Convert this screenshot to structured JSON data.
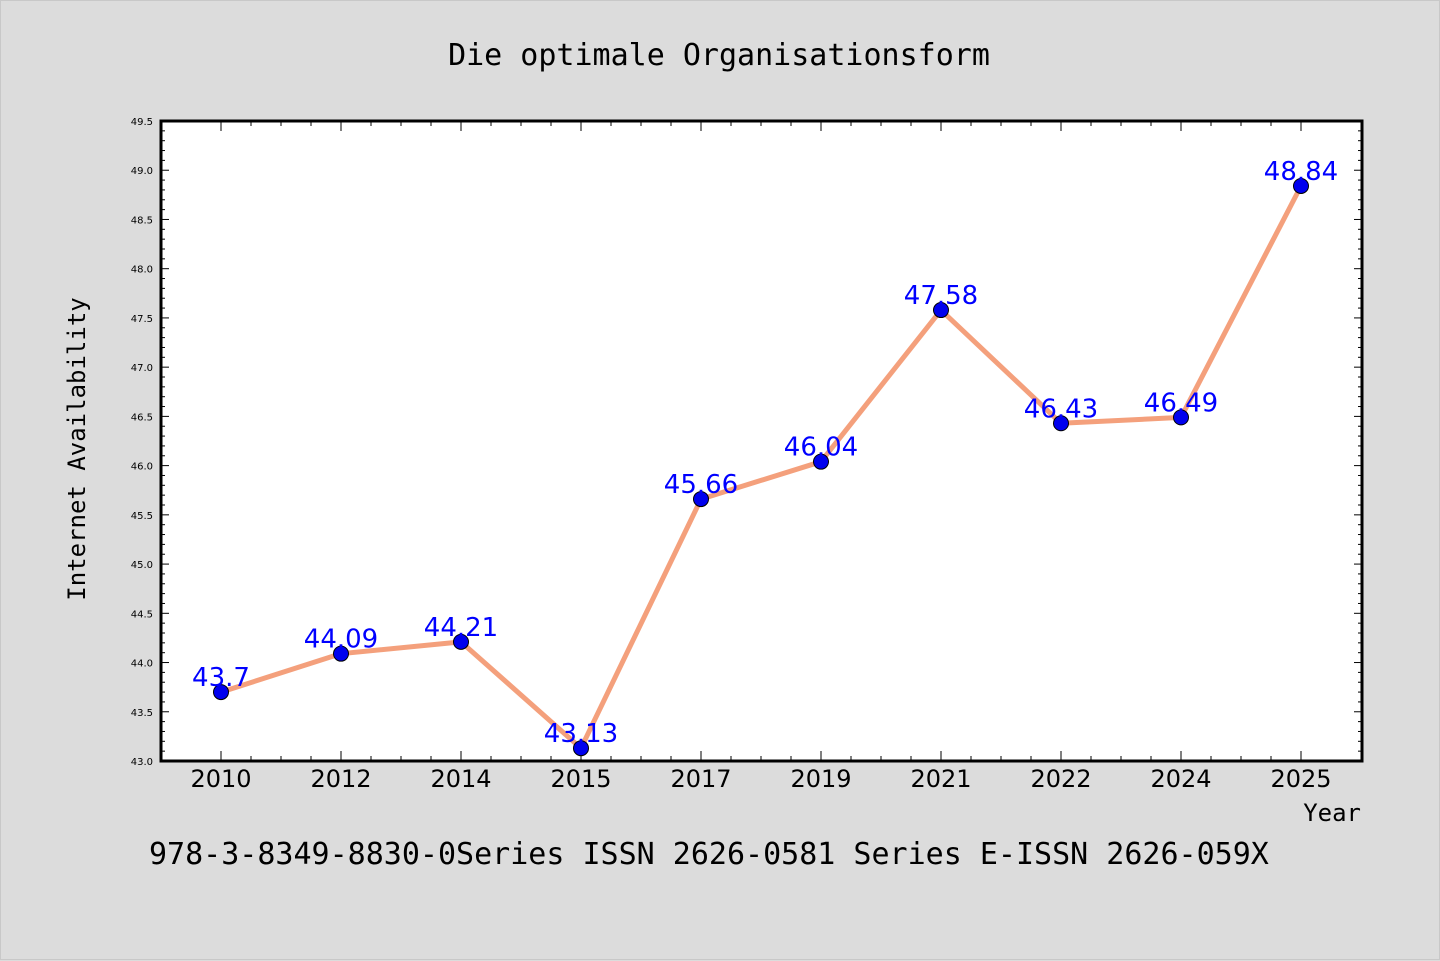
{
  "chart_data": {
    "type": "line",
    "title": "Die optimale Organisationsform",
    "xlabel": "Year",
    "ylabel": "Internet Availability",
    "categories": [
      "2010",
      "2012",
      "2014",
      "2015",
      "2017",
      "2019",
      "2021",
      "2022",
      "2024",
      "2025"
    ],
    "series": [
      {
        "values": [
          43.7,
          44.09,
          44.21,
          43.13,
          45.66,
          46.04,
          47.58,
          46.43,
          46.49,
          48.84
        ],
        "data_labels": [
          "43.7",
          "44.09",
          "44.21",
          "43.13",
          "45.66",
          "46.04",
          "47.58",
          "46.43",
          "46.49",
          "48.84"
        ]
      }
    ],
    "ylim": [
      43.0,
      49.5
    ],
    "y_ticks": [
      "43.0",
      "43.5",
      "44.0",
      "44.5",
      "45.0",
      "45.5",
      "46.0",
      "46.5",
      "47.0",
      "47.5",
      "48.0",
      "48.5",
      "49.0",
      "49.5"
    ],
    "line_color": "#f4a07c",
    "marker_color": "#0000ee",
    "data_label_color": "#0000ff",
    "grid": false,
    "legend": "none"
  },
  "footer": "978-3-8349-8830-0Series ISSN 2626-0581 Series E-ISSN 2626-059X"
}
